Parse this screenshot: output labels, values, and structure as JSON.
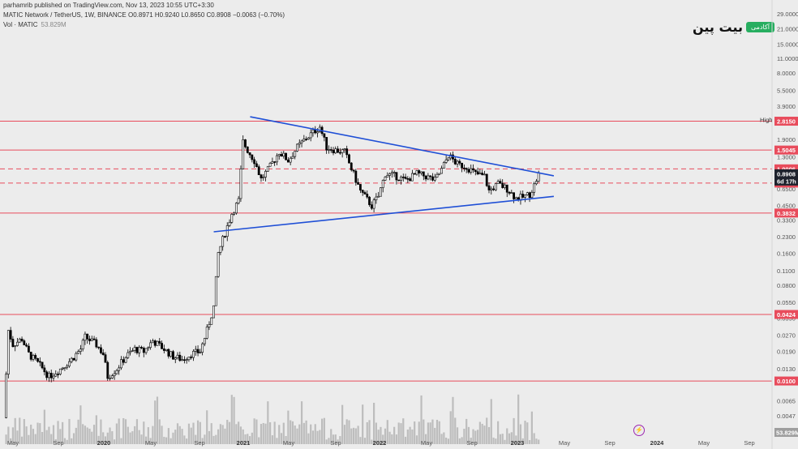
{
  "header": {
    "published": "parhamrib published on TradingView.com, Nov 13, 2023 10:55 UTC+3:30",
    "symbol_line": "MATIC Network / TetherUS, 1W, BINANCE",
    "ohlc": "O0.8971 H0.9240 L0.8650 C0.8908 −0.0063 (−0.70%)",
    "volume_label": "Vol · MATIC",
    "volume_value": "53.829M"
  },
  "brand": {
    "name": "بیت پین",
    "badge": "آکادمی"
  },
  "colors": {
    "bull": "#ffffff",
    "bear": "#000000",
    "candle_outline": "#000000",
    "trend": "#1f4fd6",
    "level": "#e84c5c",
    "dashed_level": "#e84c5c",
    "volume": "#bdbdbd"
  },
  "chart_data": {
    "type": "candlestick",
    "scale": "log",
    "x_ticks": [
      {
        "label": "May",
        "bold": false
      },
      {
        "label": "Sep",
        "bold": false
      },
      {
        "label": "2020",
        "bold": true
      },
      {
        "label": "May",
        "bold": false
      },
      {
        "label": "Sep",
        "bold": false
      },
      {
        "label": "2021",
        "bold": true
      },
      {
        "label": "May",
        "bold": false
      },
      {
        "label": "Sep",
        "bold": false
      },
      {
        "label": "2022",
        "bold": true
      },
      {
        "label": "May",
        "bold": false
      },
      {
        "label": "Sep",
        "bold": false
      },
      {
        "label": "2023",
        "bold": true
      },
      {
        "label": "May",
        "bold": false
      },
      {
        "label": "Sep",
        "bold": false
      },
      {
        "label": "2024",
        "bold": true
      },
      {
        "label": "May",
        "bold": false
      },
      {
        "label": "Sep",
        "bold": false
      }
    ],
    "y_ticks": [
      "29.0000",
      "21.0000",
      "15.0000",
      "11.0000",
      "8.0000",
      "5.5000",
      "3.9000",
      "2.9230",
      "1.9000",
      "1.3000",
      "0.6500",
      "0.4500",
      "0.3300",
      "0.2300",
      "0.1600",
      "0.1100",
      "0.0800",
      "0.0550",
      "0.0390",
      "0.0270",
      "0.0190",
      "0.0130",
      "0.0065",
      "0.0047"
    ],
    "y_range": [
      0.0035,
      32
    ],
    "horizontal_levels": [
      {
        "value": 2.815,
        "label": "2.8150",
        "style": "solid"
      },
      {
        "value": 1.5045,
        "label": "1.5045",
        "style": "solid"
      },
      {
        "value": 1.0006,
        "label": "1.0006",
        "style": "dashed"
      },
      {
        "value": 0.7348,
        "label": "0.7348",
        "style": "dashed"
      },
      {
        "value": 0.3832,
        "label": "0.3832",
        "style": "solid"
      },
      {
        "value": 0.0424,
        "label": "0.0424",
        "style": "solid"
      },
      {
        "value": 0.01,
        "label": "0.0100",
        "style": "solid"
      }
    ],
    "last_price": {
      "value": 0.8908,
      "label": "0.8908",
      "countdown": "6d 17h"
    },
    "high_label": "High",
    "volume_tag": "53.829M",
    "trendlines": [
      {
        "name": "upper",
        "from": {
          "date": "2021-06-01",
          "value": 3.1
        },
        "to": {
          "date": "2023-12-30",
          "value": 0.86
        }
      },
      {
        "name": "lower",
        "from": {
          "date": "2021-02-08",
          "value": 0.255
        },
        "to": {
          "date": "2023-12-30",
          "value": 0.55
        }
      }
    ],
    "price_path": [
      [
        "2019-04-29",
        0.0045
      ],
      [
        "2019-05-13",
        0.03
      ],
      [
        "2019-05-27",
        0.022
      ],
      [
        "2019-06-24",
        0.025
      ],
      [
        "2019-07-15",
        0.018
      ],
      [
        "2019-08-19",
        0.014
      ],
      [
        "2019-09-16",
        0.011
      ],
      [
        "2019-10-21",
        0.013
      ],
      [
        "2019-11-25",
        0.016
      ],
      [
        "2019-12-23",
        0.02
      ],
      [
        "2020-01-06",
        0.026
      ],
      [
        "2020-02-10",
        0.022
      ],
      [
        "2020-03-02",
        0.018
      ],
      [
        "2020-03-16",
        0.011
      ],
      [
        "2020-04-13",
        0.013
      ],
      [
        "2020-05-11",
        0.017
      ],
      [
        "2020-06-08",
        0.02
      ],
      [
        "2020-07-06",
        0.019
      ],
      [
        "2020-08-03",
        0.024
      ],
      [
        "2020-09-07",
        0.02
      ],
      [
        "2020-10-05",
        0.017
      ],
      [
        "2020-11-02",
        0.016
      ],
      [
        "2020-11-30",
        0.018
      ],
      [
        "2020-12-28",
        0.019
      ],
      [
        "2021-01-18",
        0.03
      ],
      [
        "2021-02-08",
        0.05
      ],
      [
        "2021-02-22",
        0.16
      ],
      [
        "2021-03-15",
        0.25
      ],
      [
        "2021-04-05",
        0.38
      ],
      [
        "2021-04-26",
        0.5
      ],
      [
        "2021-05-10",
        1.8
      ],
      [
        "2021-05-24",
        1.5
      ],
      [
        "2021-06-14",
        1.2
      ],
      [
        "2021-07-05",
        0.8
      ],
      [
        "2021-08-02",
        1.05
      ],
      [
        "2021-08-30",
        1.45
      ],
      [
        "2021-09-27",
        1.2
      ],
      [
        "2021-10-25",
        1.6
      ],
      [
        "2021-11-22",
        1.95
      ],
      [
        "2021-12-20",
        2.3
      ],
      [
        "2022-01-03",
        2.5
      ],
      [
        "2022-01-24",
        1.6
      ],
      [
        "2022-02-21",
        1.5
      ],
      [
        "2022-03-21",
        1.45
      ],
      [
        "2022-04-11",
        1.0
      ],
      [
        "2022-05-09",
        0.62
      ],
      [
        "2022-06-13",
        0.45
      ],
      [
        "2022-07-04",
        0.55
      ],
      [
        "2022-07-25",
        0.9
      ],
      [
        "2022-08-29",
        0.85
      ],
      [
        "2022-09-26",
        0.78
      ],
      [
        "2022-10-31",
        0.9
      ],
      [
        "2022-11-28",
        0.85
      ],
      [
        "2022-12-26",
        0.78
      ],
      [
        "2023-01-16",
        0.98
      ],
      [
        "2023-02-06",
        1.35
      ],
      [
        "2023-03-06",
        1.1
      ],
      [
        "2023-04-03",
        1.05
      ],
      [
        "2023-05-01",
        0.9
      ],
      [
        "2023-05-29",
        0.85
      ],
      [
        "2023-06-12",
        0.62
      ],
      [
        "2023-07-10",
        0.72
      ],
      [
        "2023-08-07",
        0.65
      ],
      [
        "2023-09-04",
        0.53
      ],
      [
        "2023-09-25",
        0.54
      ],
      [
        "2023-10-16",
        0.58
      ],
      [
        "2023-10-30",
        0.7
      ],
      [
        "2023-11-13",
        0.8908
      ]
    ]
  }
}
